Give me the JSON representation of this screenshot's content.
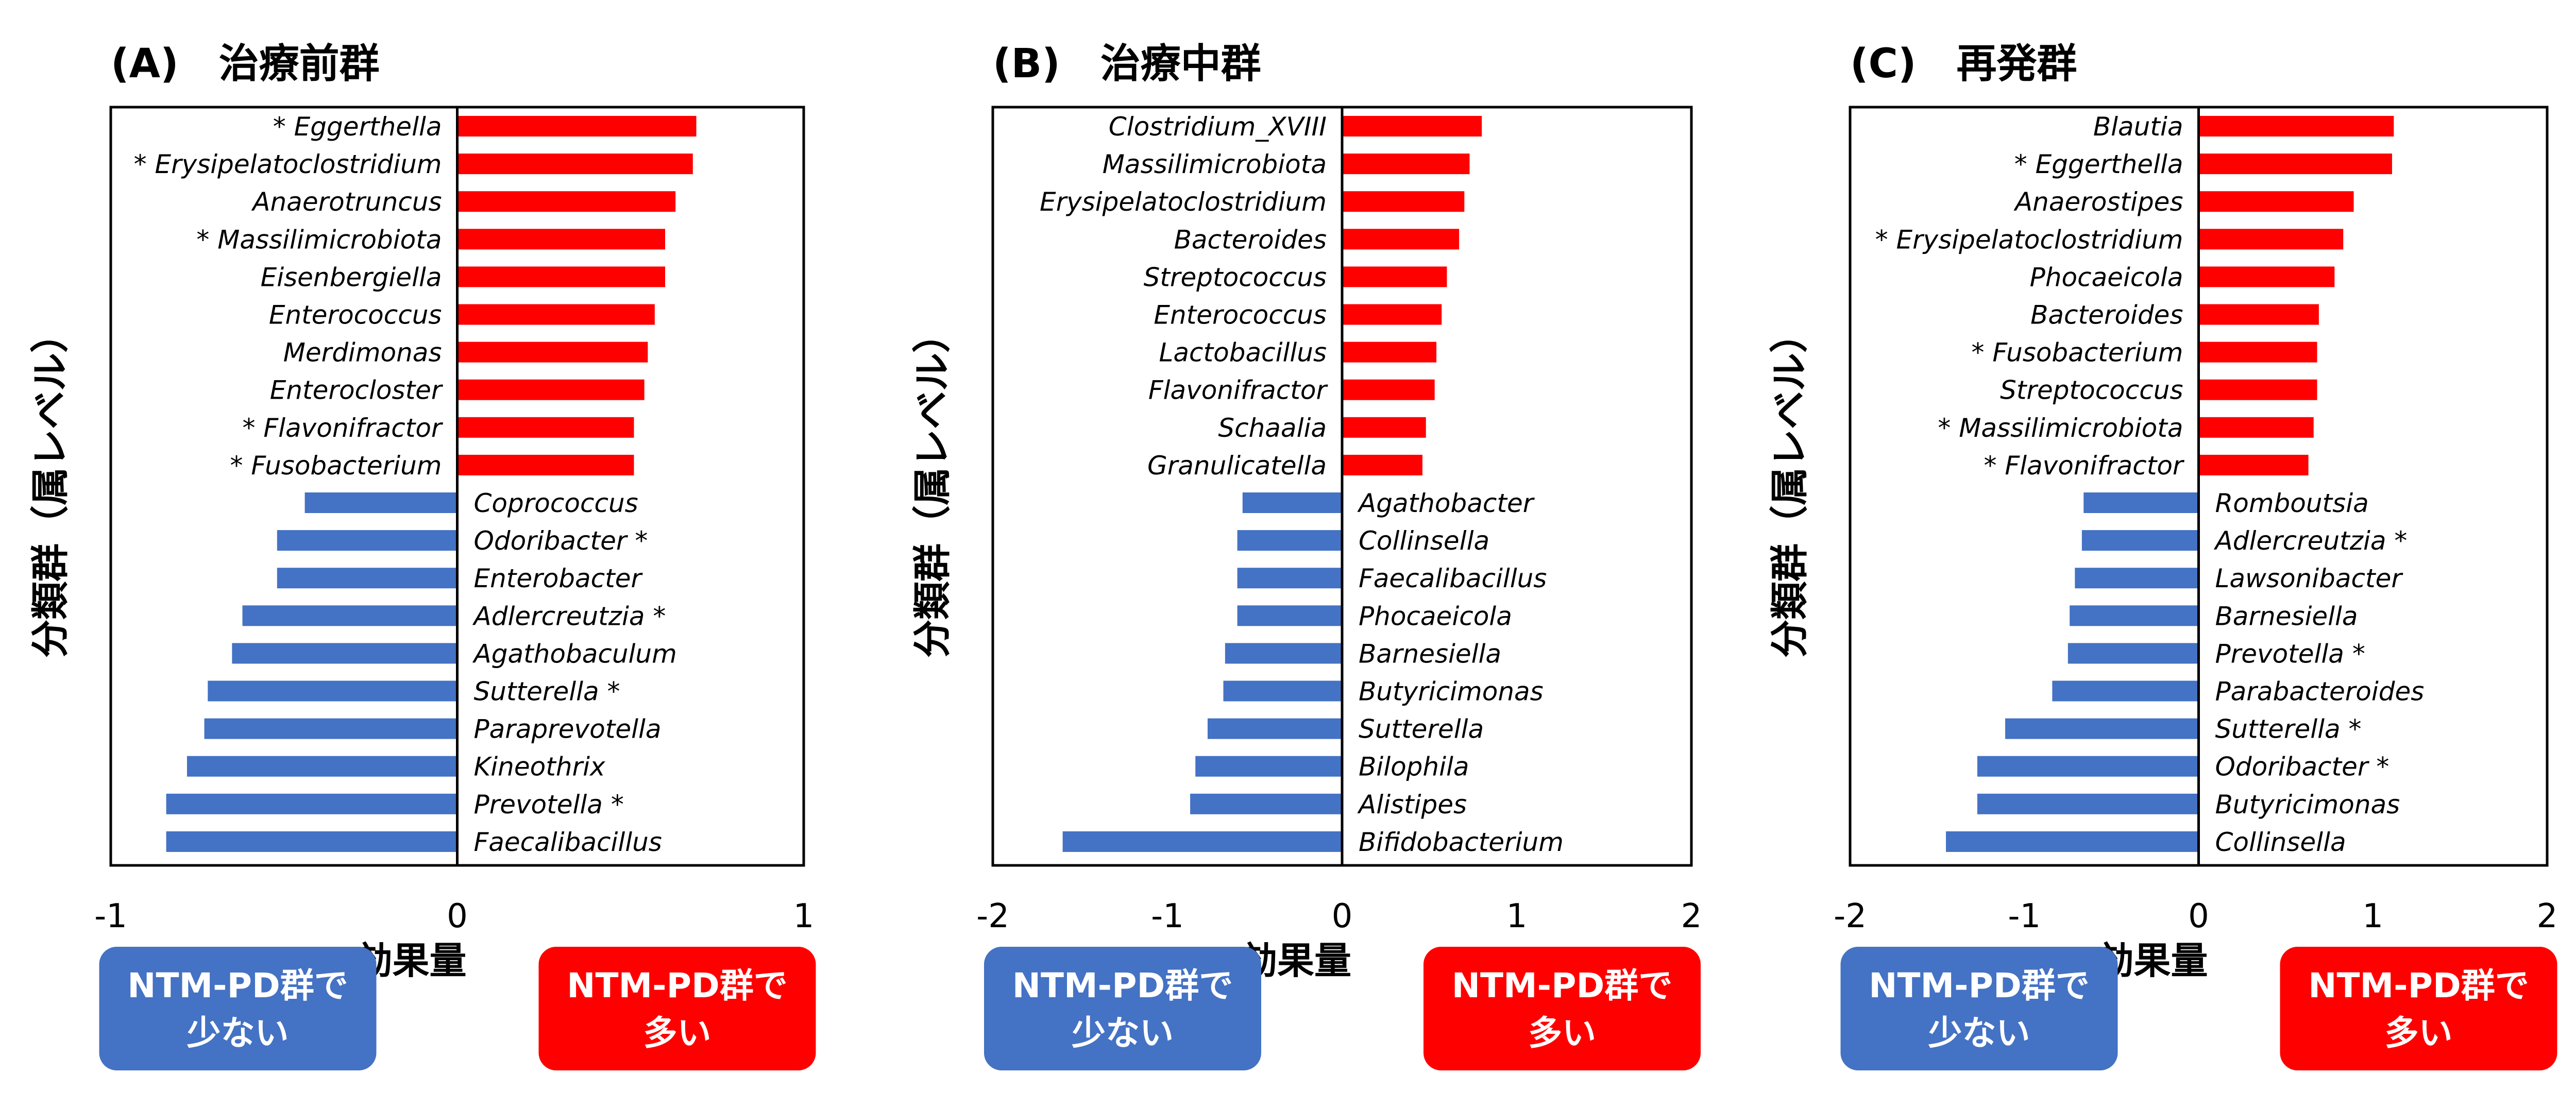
{
  "figure": {
    "ylabel": "分類群（属レベル）",
    "xlabel": "効果量",
    "box_less": [
      "NTM-PD群で",
      "少ない"
    ],
    "box_more": [
      "NTM-PD群で",
      "多い"
    ],
    "colors": {
      "increase": "#ff0000",
      "decrease": "#4472c4",
      "box_less": "#4472c4",
      "box_more": "#ff0000"
    }
  },
  "chart_data": [
    {
      "type": "bar",
      "orientation": "horizontal",
      "title": "(A)　治療前群",
      "xlabel": "効果量",
      "ylabel": "分類群（属レベル）",
      "xlim": [
        -1,
        1
      ],
      "xticks": [
        "-1",
        "0",
        "1"
      ],
      "categories": [
        "* Eggerthella",
        "* Erysipelatoclostridium",
        "Anaerotruncus",
        "* Massilimicrobiota",
        "Eisenbergiella",
        "Enterococcus",
        "Merdimonas",
        "Enterocloster",
        "* Flavonifractor",
        "* Fusobacterium",
        "Coprococcus",
        "Odoribacter *",
        "Enterobacter",
        "Adlercreutzia *",
        "Agathobaculum",
        "Sutterella *",
        "Paraprevotella",
        "Kineothrix",
        "Prevotella *",
        "Faecalibacillus"
      ],
      "values": [
        0.69,
        0.68,
        0.63,
        0.6,
        0.6,
        0.57,
        0.55,
        0.54,
        0.51,
        0.51,
        -0.44,
        -0.52,
        -0.52,
        -0.62,
        -0.65,
        -0.72,
        -0.73,
        -0.78,
        -0.84,
        -0.84
      ]
    },
    {
      "type": "bar",
      "orientation": "horizontal",
      "title": "(B)　治療中群",
      "xlabel": "効果量",
      "ylabel": "分類群（属レベル）",
      "xlim": [
        -2,
        2
      ],
      "xticks": [
        "-2",
        "-1",
        "0",
        "1",
        "2"
      ],
      "categories": [
        "Clostridium_XVIII",
        "Massilimicrobiota",
        "Erysipelatoclostridium",
        "Bacteroides",
        "Streptococcus",
        "Enterococcus",
        "Lactobacillus",
        "Flavonifractor",
        "Schaalia",
        "Granulicatella",
        "Agathobacter",
        "Collinsella",
        "Faecalibacillus",
        "Phocaeicola",
        "Barnesiella",
        "Butyricimonas",
        "Sutterella",
        "Bilophila",
        "Alistipes",
        "Bifidobacterium"
      ],
      "values": [
        0.8,
        0.73,
        0.7,
        0.67,
        0.6,
        0.57,
        0.54,
        0.53,
        0.48,
        0.46,
        -0.57,
        -0.6,
        -0.6,
        -0.6,
        -0.67,
        -0.68,
        -0.77,
        -0.84,
        -0.87,
        -1.6
      ]
    },
    {
      "type": "bar",
      "orientation": "horizontal",
      "title": "(C)　再発群",
      "xlabel": "効果量",
      "ylabel": "分類群（属レベル）",
      "xlim": [
        -2,
        2
      ],
      "xticks": [
        "-2",
        "-1",
        "0",
        "1",
        "2"
      ],
      "categories": [
        "Blautia",
        "* Eggerthella",
        "Anaerostipes",
        "* Erysipelatoclostridium",
        "Phocaeicola",
        "Bacteroides",
        "* Fusobacterium",
        "Streptococcus",
        "* Massilimicrobiota",
        "* Flavonifractor",
        "Romboutsia",
        "Adlercreutzia *",
        "Lawsonibacter",
        "Barnesiella",
        "Prevotella *",
        "Parabacteroides",
        "Sutterella *",
        "Odoribacter *",
        "Butyricimonas",
        "Collinsella"
      ],
      "values": [
        1.12,
        1.11,
        0.89,
        0.83,
        0.78,
        0.69,
        0.68,
        0.68,
        0.66,
        0.63,
        -0.66,
        -0.67,
        -0.71,
        -0.74,
        -0.75,
        -0.84,
        -1.11,
        -1.27,
        -1.27,
        -1.45
      ]
    }
  ]
}
